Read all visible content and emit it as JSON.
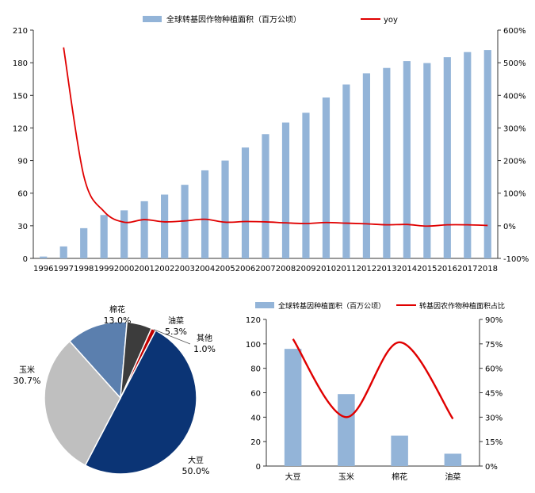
{
  "colors": {
    "bar": "#93b4d8",
    "line": "#e00000",
    "axis": "#333333",
    "pie_soybean": "#0b3475",
    "pie_corn": "#bfbfbf",
    "pie_cotton": "#5b7fae",
    "pie_canola": "#3c3c3c",
    "pie_other": "#c00000"
  },
  "chart_data": [
    {
      "type": "bar",
      "legend": [
        "全球转基因作物种植面积（百万公顷）",
        "yoy"
      ],
      "categories": [
        "1996",
        "1997",
        "1998",
        "1999",
        "2000",
        "2001",
        "2002",
        "2003",
        "2004",
        "2005",
        "2006",
        "2007",
        "2008",
        "2009",
        "2010",
        "2011",
        "2012",
        "2013",
        "2014",
        "2015",
        "2016",
        "2017",
        "2018"
      ],
      "series": [
        {
          "name": "全球转基因作物种植面积（百万公顷）",
          "kind": "bar",
          "axis": "left",
          "values": [
            1.7,
            11,
            27.8,
            39.9,
            44.2,
            52.6,
            58.7,
            67.7,
            81,
            90,
            102,
            114.3,
            125,
            134,
            148,
            160,
            170.3,
            175.2,
            181.5,
            179.7,
            185.1,
            189.8,
            191.7
          ]
        },
        {
          "name": "yoy",
          "kind": "line",
          "axis": "right",
          "values": [
            null,
            547,
            153,
            44,
            11,
            19,
            12,
            15,
            20,
            11,
            13,
            12,
            9,
            7,
            10,
            8,
            6,
            3,
            4,
            -1,
            3,
            3,
            1
          ]
        }
      ],
      "ylim_left": [
        0,
        210
      ],
      "yticks_left": [
        "0",
        "30",
        "60",
        "90",
        "120",
        "150",
        "180",
        "210"
      ],
      "ylim_right": [
        -100,
        600
      ],
      "yticks_right": [
        "-100%",
        "0%",
        "100%",
        "200%",
        "300%",
        "400%",
        "500%",
        "600%"
      ]
    },
    {
      "type": "pie",
      "slices": [
        {
          "label": "大豆",
          "value": 50.0,
          "text": "50.0%"
        },
        {
          "label": "玉米",
          "value": 30.7,
          "text": "30.7%"
        },
        {
          "label": "棉花",
          "value": 13.0,
          "text": "13.0%"
        },
        {
          "label": "油菜",
          "value": 5.3,
          "text": "5.3%"
        },
        {
          "label": "其他",
          "value": 1.0,
          "text": "1.0%"
        }
      ]
    },
    {
      "type": "bar",
      "legend": [
        "全球转基因种植面积（百万公顷）",
        "转基因农作物种植面积占比"
      ],
      "categories": [
        "大豆",
        "玉米",
        "棉花",
        "油菜"
      ],
      "series": [
        {
          "name": "全球转基因种植面积（百万公顷）",
          "kind": "bar",
          "axis": "left",
          "values": [
            95.9,
            58.9,
            24.9,
            10.1
          ]
        },
        {
          "name": "转基因农作物种植面积占比",
          "kind": "line",
          "axis": "right",
          "values": [
            78,
            30,
            76,
            29
          ]
        }
      ],
      "ylim_left": [
        0,
        120
      ],
      "yticks_left": [
        "0",
        "20",
        "40",
        "60",
        "80",
        "100",
        "120"
      ],
      "ylim_right": [
        0,
        90
      ],
      "yticks_right": [
        "0%",
        "15%",
        "30%",
        "45%",
        "60%",
        "75%",
        "90%"
      ]
    }
  ]
}
